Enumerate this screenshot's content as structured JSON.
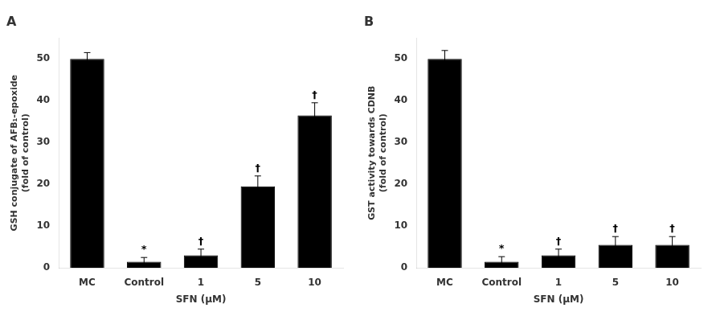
{
  "chart_data": [
    {
      "type": "bar",
      "title": "A",
      "categories": [
        "MC",
        "Control",
        "1",
        "5",
        "10"
      ],
      "values": [
        50,
        1.5,
        3.0,
        19.5,
        36.5
      ],
      "errors": [
        1.5,
        1.0,
        1.5,
        2.5,
        3.0
      ],
      "ylabel": "GSH conjugate of AFB₁-epoxide\n(fold of control)",
      "xlabel": "SFN (μM)",
      "color": "#000000",
      "ylim": [
        0,
        55
      ],
      "yticks": [
        0,
        10,
        20,
        30,
        40,
        50
      ],
      "grid": false,
      "annotations": [
        {
          "category": "Control",
          "text": "*"
        },
        {
          "category": "1",
          "text": "†"
        },
        {
          "category": "5",
          "text": "†"
        },
        {
          "category": "10",
          "text": "†"
        }
      ]
    },
    {
      "type": "bar",
      "title": "B",
      "categories": [
        "MC",
        "Control",
        "1",
        "5",
        "10"
      ],
      "values": [
        50,
        1.5,
        3.0,
        5.5,
        5.5
      ],
      "errors": [
        2.0,
        1.2,
        1.5,
        2.0,
        2.0
      ],
      "ylabel": "GST activity towards CDNB\n(fold of control)",
      "xlabel": "SFN (μM)",
      "color": "#000000",
      "ylim": [
        0,
        55
      ],
      "yticks": [
        0,
        10,
        20,
        30,
        40,
        50
      ],
      "grid": false,
      "annotations": [
        {
          "category": "Control",
          "text": "*"
        },
        {
          "category": "1",
          "text": "†"
        },
        {
          "category": "5",
          "text": "†"
        },
        {
          "category": "10",
          "text": "†"
        }
      ]
    }
  ]
}
